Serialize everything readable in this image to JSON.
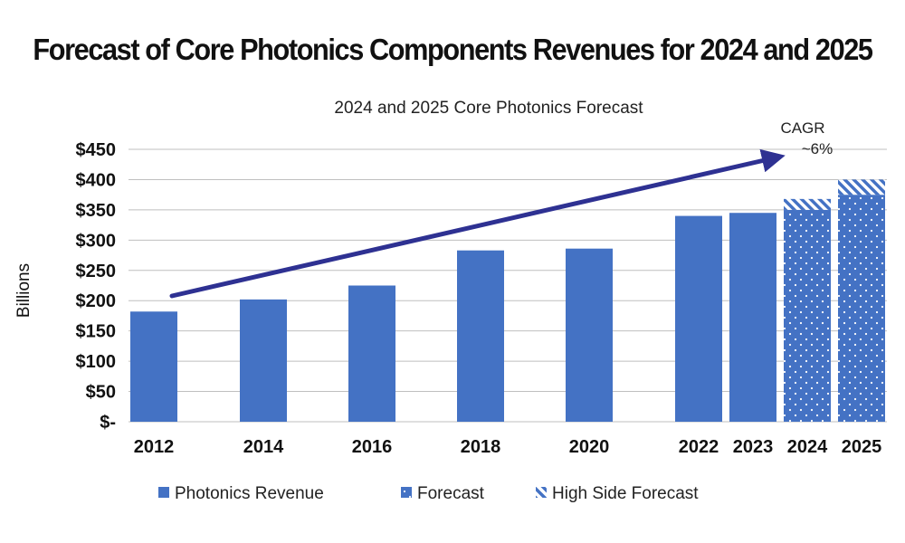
{
  "page_title": "Forecast of Core Photonics Components Revenues for 2024 and 2025",
  "colors": {
    "bar": "#4472c4",
    "arrow": "#2e3192",
    "grid": "#bfbfbf"
  },
  "annotation": {
    "line1": "CAGR",
    "line2": "~6%"
  },
  "chart_data": {
    "type": "bar",
    "title": "2024 and 2025 Core Photonics Forecast",
    "xlabel": "",
    "ylabel": "Billions",
    "ylim": [
      0,
      450
    ],
    "yticks": [
      0,
      50,
      100,
      150,
      200,
      250,
      300,
      350,
      400,
      450
    ],
    "ytick_labels": [
      "$-",
      "$50",
      "$100",
      "$150",
      "$200",
      "$250",
      "$300",
      "$350",
      "$400",
      "$450"
    ],
    "grid": true,
    "legend_position": "bottom",
    "categories": [
      "2012",
      "2014",
      "2016",
      "2018",
      "2020",
      "2022",
      "2023",
      "2024",
      "2025"
    ],
    "series": [
      {
        "name": "Photonics Revenue",
        "style": "solid",
        "values": [
          182,
          202,
          225,
          283,
          286,
          340,
          345,
          null,
          null
        ]
      },
      {
        "name": "Forecast",
        "style": "dotted",
        "values": [
          null,
          null,
          null,
          null,
          null,
          null,
          null,
          350,
          375
        ]
      },
      {
        "name": "High Side Forecast",
        "style": "hatched",
        "values": [
          null,
          null,
          null,
          null,
          null,
          null,
          null,
          18,
          25
        ]
      }
    ]
  }
}
